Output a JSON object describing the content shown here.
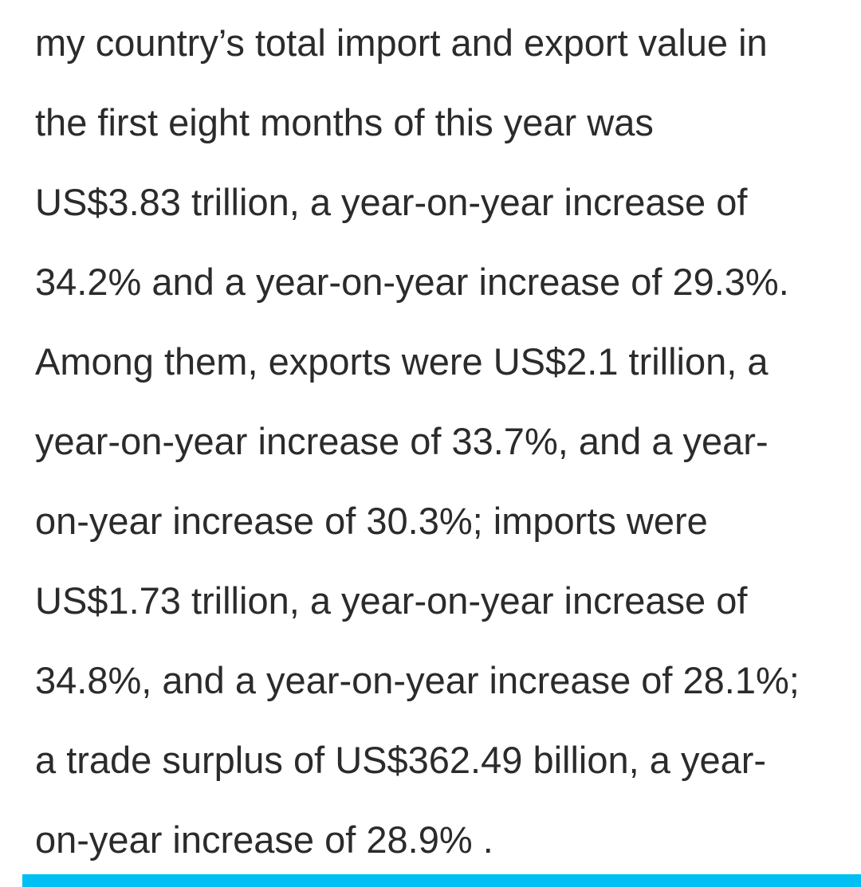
{
  "article": {
    "lines": [
      "my country’s total import and export value in",
      "the first eight months of this year was",
      "US$3.83 trillion, a year-on-year increase of",
      "34.2% and a year-on-year increase of 29.3%.",
      "Among them, exports were US$2.1 trillion, a",
      "year-on-year increase of 33.7%, and a year-",
      "on-year increase of 30.3%; imports were",
      "US$1.73 trillion, a year-on-year increase of",
      "34.8%, and a year-on-year increase of 28.1%;",
      "a trade surplus of US$362.49 billion, a year-",
      "on-year increase of 28.9% ."
    ]
  },
  "reading_progress": {
    "fraction": 1.0,
    "color": "#00bff3"
  }
}
